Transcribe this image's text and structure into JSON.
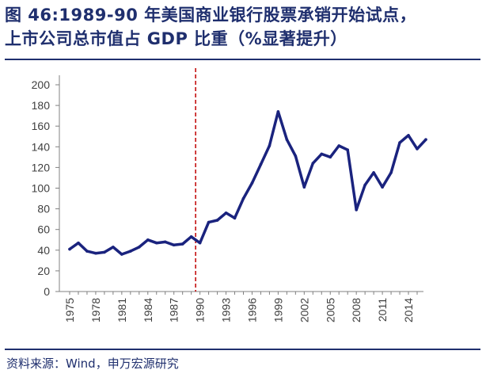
{
  "title": {
    "line1": "图 46:1989-90 年美国商业银行股票承销开始试点，",
    "line2": "上市公司总市值占 GDP 比重（%显著提升）"
  },
  "source": "资料来源：Wind，申万宏源研究",
  "colors": {
    "line": "#1a237e",
    "marker": "#c00000",
    "text": "#1f2f6e",
    "axis": "#808080"
  },
  "chart_data": {
    "type": "line",
    "title": "",
    "xlabel": "",
    "ylabel": "",
    "ylim": [
      0,
      200
    ],
    "yticks": [
      0,
      20,
      40,
      60,
      80,
      100,
      120,
      140,
      160,
      180,
      200
    ],
    "xlim": [
      1975,
      2015
    ],
    "xtick_labels": [
      "1975",
      "1978",
      "1981",
      "1984",
      "1987",
      "1990",
      "1993",
      "1996",
      "1999",
      "2002",
      "2005",
      "2008",
      "2011",
      "2014"
    ],
    "grid": false,
    "legend": "none",
    "reference_line": {
      "x": 1989.5,
      "style": "dashed",
      "color": "#c00000"
    },
    "series": [
      {
        "x": [
          1975,
          1976,
          1977,
          1978,
          1979,
          1980,
          1981,
          1982,
          1983,
          1984,
          1985,
          1986,
          1987,
          1988,
          1989,
          1990,
          1991,
          1992,
          1993,
          1994,
          1995,
          1996,
          1997,
          1998,
          1999,
          2000,
          2001,
          2002,
          2003,
          2004,
          2005,
          2006,
          2007,
          2008,
          2009,
          2010,
          2011,
          2012,
          2013,
          2014,
          2015,
          2016
        ],
        "values": [
          41,
          47,
          39,
          37,
          38,
          43,
          36,
          39,
          43,
          50,
          47,
          48,
          45,
          46,
          53,
          47,
          67,
          69,
          76,
          71,
          90,
          105,
          123,
          141,
          174,
          147,
          131,
          101,
          124,
          133,
          130,
          141,
          137,
          79,
          103,
          115,
          101,
          115,
          144,
          151,
          138,
          147
        ]
      }
    ]
  }
}
